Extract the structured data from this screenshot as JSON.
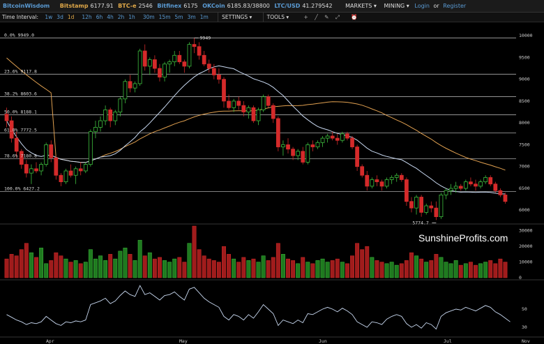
{
  "topbar": {
    "brand": "BitcoinWisdom",
    "tickers": [
      {
        "name": "Bitstamp",
        "price": "6177.91"
      },
      {
        "name": "BTC-e",
        "price": "2546"
      },
      {
        "name": "Bitfinex",
        "price": "6175"
      },
      {
        "name": "OKCoin",
        "price": "6185.83/38800"
      },
      {
        "name": "LTC/USD",
        "price": "41.279542"
      }
    ],
    "markets": "MARKETS ▾",
    "mining": "MINING ▾",
    "login": "Login",
    "or": "or",
    "register": "Register"
  },
  "toolbar": {
    "label": "Time Interval:",
    "intervals": [
      "1w",
      "3d",
      "1d",
      "12h",
      "6h",
      "4h",
      "2h",
      "1h",
      "30m",
      "15m",
      "5m",
      "3m",
      "1m"
    ],
    "selected_interval": "1d",
    "settings": "SETTINGS ▾",
    "tools": "TOOLS ▾",
    "tool_icons": [
      "crosshair-icon",
      "line-icon",
      "pencil-icon",
      "fullscreen-icon",
      "alarm-icon"
    ]
  },
  "chart_data": {
    "type": "candlestick",
    "watermark": "SunshineProfits.com",
    "price_axis": {
      "ticks": [
        10000,
        9500,
        9000,
        8500,
        8000,
        7500,
        7000,
        6500,
        6000
      ],
      "range": [
        5700,
        10050
      ]
    },
    "fib_levels": [
      {
        "label": "0.0% 9949.0",
        "value": 9949
      },
      {
        "label": "23.6% 9117.8",
        "value": 9117.8
      },
      {
        "label": "38.2% 8603.6",
        "value": 8603.6
      },
      {
        "label": "50.0% 8188.1",
        "value": 8188.1
      },
      {
        "label": "61.8% 7772.5",
        "value": 7772.5
      },
      {
        "label": "78.6% 7180.8",
        "value": 7180.8
      },
      {
        "label": "100.0% 6427.2",
        "value": 6427.2
      }
    ],
    "annotations": [
      {
        "text": "9949",
        "value": 9949
      },
      {
        "text": "5774.7",
        "value": 5774.7
      }
    ],
    "x_labels": [
      "Apr",
      "May",
      "Jun",
      "Jul",
      "Nov"
    ],
    "volume_axis": {
      "ticks": [
        30000,
        20000,
        10000,
        0
      ]
    },
    "rsi_axis": {
      "ticks": [
        50,
        30
      ]
    },
    "candles": [
      [
        8200,
        8350,
        7900,
        8050
      ],
      [
        8050,
        8150,
        7550,
        7650
      ],
      [
        7650,
        7800,
        7200,
        7350
      ],
      [
        7350,
        7400,
        6950,
        7050
      ],
      [
        7050,
        7150,
        6750,
        6850
      ],
      [
        6850,
        7050,
        6600,
        6950
      ],
      [
        6950,
        7100,
        6850,
        6900
      ],
      [
        6900,
        7100,
        6800,
        7050
      ],
      [
        7050,
        7550,
        7000,
        7500
      ],
      [
        7500,
        7600,
        7100,
        7200
      ],
      [
        7200,
        7250,
        6700,
        6800
      ],
      [
        6800,
        6850,
        6550,
        6650
      ],
      [
        6650,
        6950,
        6600,
        6900
      ],
      [
        6900,
        7050,
        6750,
        6800
      ],
      [
        6800,
        7000,
        6600,
        6950
      ],
      [
        6950,
        7100,
        6800,
        6900
      ],
      [
        6900,
        7100,
        6850,
        7050
      ],
      [
        7050,
        7850,
        7000,
        7800
      ],
      [
        7800,
        8050,
        7650,
        7900
      ],
      [
        7900,
        8150,
        7800,
        8050
      ],
      [
        8050,
        8400,
        7950,
        8300
      ],
      [
        8300,
        8350,
        7900,
        8050
      ],
      [
        8050,
        8300,
        7950,
        8250
      ],
      [
        8250,
        8600,
        8150,
        8550
      ],
      [
        8550,
        9000,
        8450,
        8950
      ],
      [
        8950,
        9100,
        8700,
        8800
      ],
      [
        8800,
        8950,
        8700,
        8900
      ],
      [
        8900,
        9700,
        8850,
        9650
      ],
      [
        9650,
        9800,
        9200,
        9300
      ],
      [
        9300,
        9500,
        9100,
        9450
      ],
      [
        9450,
        9550,
        9150,
        9250
      ],
      [
        9250,
        9350,
        8950,
        9050
      ],
      [
        9050,
        9400,
        8950,
        9350
      ],
      [
        9350,
        9450,
        9150,
        9400
      ],
      [
        9400,
        9650,
        9300,
        9550
      ],
      [
        9550,
        9650,
        9350,
        9400
      ],
      [
        9400,
        9450,
        9150,
        9300
      ],
      [
        9300,
        9850,
        9250,
        9800
      ],
      [
        9800,
        9949,
        9600,
        9750
      ],
      [
        9750,
        9850,
        9450,
        9550
      ],
      [
        9550,
        9650,
        9300,
        9350
      ],
      [
        9350,
        9450,
        9150,
        9250
      ],
      [
        9250,
        9350,
        9000,
        9100
      ],
      [
        9100,
        9250,
        8900,
        9000
      ],
      [
        9000,
        9050,
        8350,
        8500
      ],
      [
        8500,
        8650,
        8300,
        8350
      ],
      [
        8350,
        8550,
        8250,
        8500
      ],
      [
        8500,
        8600,
        8300,
        8400
      ],
      [
        8400,
        8500,
        8150,
        8250
      ],
      [
        8250,
        8400,
        8100,
        8350
      ],
      [
        8350,
        8400,
        8000,
        8050
      ],
      [
        8050,
        8350,
        7950,
        8300
      ],
      [
        8300,
        8650,
        8250,
        8600
      ],
      [
        8600,
        8650,
        8350,
        8400
      ],
      [
        8400,
        8450,
        8000,
        8100
      ],
      [
        8100,
        8150,
        7350,
        7450
      ],
      [
        7450,
        7600,
        7250,
        7500
      ],
      [
        7500,
        7650,
        7300,
        7400
      ],
      [
        7400,
        7450,
        7150,
        7250
      ],
      [
        7250,
        7400,
        7150,
        7350
      ],
      [
        7350,
        7450,
        7050,
        7100
      ],
      [
        7100,
        7550,
        7050,
        7500
      ],
      [
        7500,
        7600,
        7350,
        7450
      ],
      [
        7450,
        7600,
        7400,
        7550
      ],
      [
        7550,
        7700,
        7450,
        7650
      ],
      [
        7650,
        7750,
        7550,
        7700
      ],
      [
        7700,
        7800,
        7600,
        7650
      ],
      [
        7650,
        7750,
        7500,
        7600
      ],
      [
        7600,
        7800,
        7550,
        7750
      ],
      [
        7750,
        7800,
        7600,
        7650
      ],
      [
        7650,
        7700,
        7400,
        7450
      ],
      [
        7450,
        7500,
        6900,
        7000
      ],
      [
        7000,
        7050,
        6750,
        6800
      ],
      [
        6800,
        6900,
        6450,
        6550
      ],
      [
        6550,
        6750,
        6500,
        6700
      ],
      [
        6700,
        6800,
        6550,
        6650
      ],
      [
        6650,
        6700,
        6450,
        6550
      ],
      [
        6550,
        6750,
        6500,
        6700
      ],
      [
        6700,
        6800,
        6600,
        6750
      ],
      [
        6750,
        6850,
        6650,
        6800
      ],
      [
        6800,
        6850,
        6650,
        6700
      ],
      [
        6700,
        6750,
        6100,
        6200
      ],
      [
        6200,
        6300,
        5950,
        6050
      ],
      [
        6050,
        6350,
        5900,
        6300
      ],
      [
        6300,
        6350,
        5850,
        5950
      ],
      [
        5950,
        6150,
        5900,
        6100
      ],
      [
        6100,
        6200,
        5950,
        6050
      ],
      [
        6050,
        6200,
        5774.7,
        5850
      ],
      [
        5850,
        6400,
        5800,
        6350
      ],
      [
        6350,
        6500,
        6250,
        6450
      ],
      [
        6450,
        6600,
        6350,
        6500
      ],
      [
        6500,
        6650,
        6400,
        6550
      ],
      [
        6550,
        6600,
        6450,
        6500
      ],
      [
        6500,
        6700,
        6450,
        6650
      ],
      [
        6650,
        6750,
        6550,
        6600
      ],
      [
        6600,
        6700,
        6450,
        6550
      ],
      [
        6550,
        6700,
        6500,
        6650
      ],
      [
        6650,
        6800,
        6600,
        6750
      ],
      [
        6750,
        6800,
        6550,
        6600
      ],
      [
        6600,
        6650,
        6400,
        6450
      ],
      [
        6450,
        6500,
        6300,
        6350
      ],
      [
        6350,
        6400,
        6150,
        6200
      ]
    ],
    "volumes": [
      12000,
      15000,
      14000,
      18000,
      22000,
      16000,
      13000,
      19000,
      9000,
      11000,
      16000,
      14000,
      12000,
      10000,
      11000,
      9000,
      10000,
      18000,
      12000,
      14000,
      11000,
      15000,
      12000,
      17000,
      19000,
      15000,
      11000,
      24000,
      14000,
      16000,
      12000,
      13000,
      11000,
      10000,
      12000,
      13000,
      10000,
      22000,
      33000,
      18000,
      14000,
      12000,
      11000,
      10000,
      20000,
      15000,
      12000,
      10000,
      13000,
      11000,
      12000,
      10000,
      14000,
      11000,
      13000,
      22000,
      15000,
      12000,
      11000,
      9000,
      13000,
      10000,
      9000,
      11000,
      12000,
      10000,
      11000,
      12000,
      10000,
      9000,
      14000,
      22000,
      18000,
      20000,
      13000,
      11000,
      10000,
      9000,
      10000,
      8000,
      9000,
      11000,
      16000,
      14000,
      12000,
      10000,
      11000,
      15000,
      13000,
      10000,
      9000,
      11000,
      8000,
      9000,
      10000,
      8000,
      9000,
      10000,
      11000,
      9000,
      12000,
      10000,
      8000
    ],
    "rsi": [
      44,
      41,
      38,
      36,
      33,
      35,
      34,
      36,
      42,
      38,
      34,
      32,
      36,
      35,
      37,
      36,
      38,
      55,
      57,
      59,
      62,
      56,
      59,
      65,
      70,
      66,
      64,
      76,
      66,
      68,
      64,
      60,
      65,
      66,
      69,
      64,
      60,
      72,
      74,
      68,
      62,
      58,
      55,
      52,
      42,
      38,
      44,
      42,
      38,
      44,
      40,
      47,
      55,
      50,
      45,
      32,
      38,
      36,
      34,
      38,
      35,
      45,
      44,
      47,
      50,
      52,
      50,
      47,
      51,
      48,
      44,
      36,
      33,
      30,
      36,
      35,
      33,
      39,
      42,
      44,
      42,
      34,
      30,
      33,
      29,
      35,
      33,
      28,
      42,
      46,
      48,
      50,
      49,
      52,
      50,
      48,
      51,
      54,
      52,
      47,
      44,
      40,
      36
    ]
  }
}
